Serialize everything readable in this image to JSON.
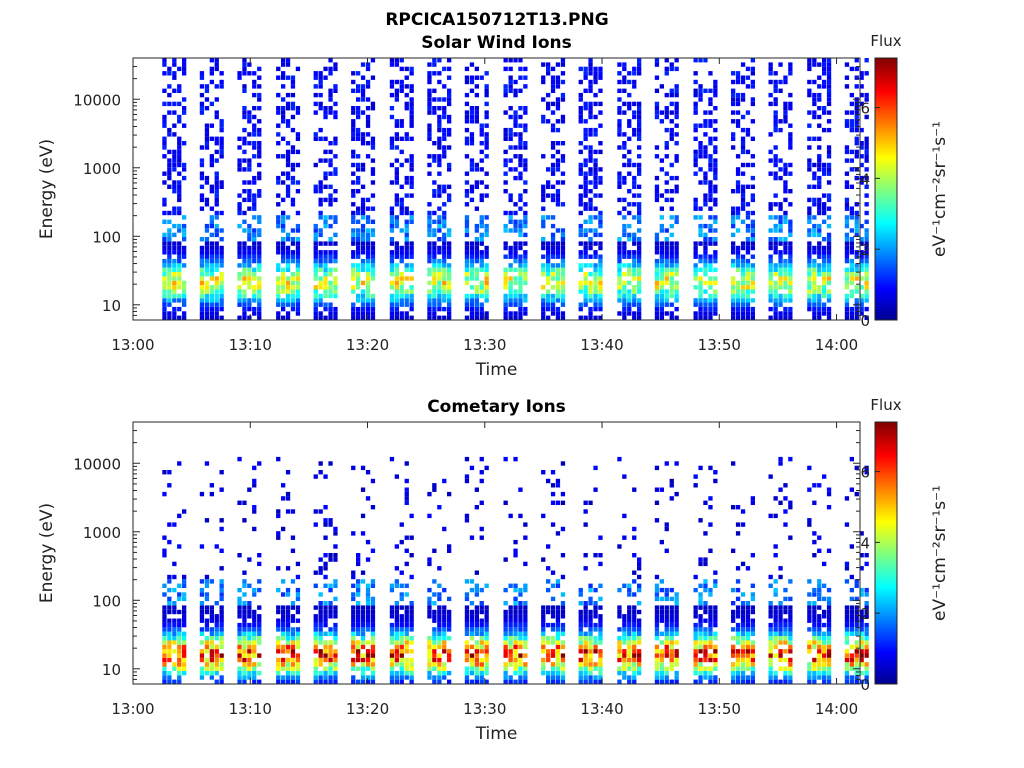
{
  "figure_title": "RPCICA150712T13.PNG",
  "chart_data": [
    {
      "type": "heatmap",
      "title": "Solar Wind Ions",
      "xlabel": "Time",
      "ylabel": "Energy (eV)",
      "x_ticks": [
        "13:00",
        "13:10",
        "13:20",
        "13:30",
        "13:40",
        "13:50",
        "14:00"
      ],
      "x_range_min": [
        0,
        62
      ],
      "y_scale": "log",
      "y_ticks": [
        10,
        100,
        1000,
        10000
      ],
      "y_range": [
        6,
        40000
      ],
      "colorbar": {
        "label": "Flux",
        "units": "eV⁻¹cm⁻²sr⁻¹s⁻¹",
        "ticks": [
          0,
          2,
          4,
          6
        ],
        "range": [
          0,
          7.4
        ],
        "colormap": "jet"
      },
      "sweep_start_min": [
        2.5,
        5.7,
        8.9,
        12.2,
        15.4,
        18.6,
        21.9,
        25.1,
        28.3,
        31.6,
        34.8,
        38.0,
        41.3,
        44.5,
        47.8,
        51.0,
        54.2,
        57.5,
        60.7
      ],
      "profile": {
        "low_energy_peak_flux": 4.5,
        "low_energy_peak_eV": 20,
        "high_energy_flux": 0.6,
        "max_energy_eV": 40000
      }
    },
    {
      "type": "heatmap",
      "title": "Cometary Ions",
      "xlabel": "Time",
      "ylabel": "Energy (eV)",
      "x_ticks": [
        "13:00",
        "13:10",
        "13:20",
        "13:30",
        "13:40",
        "13:50",
        "14:00"
      ],
      "x_range_min": [
        0,
        62
      ],
      "y_scale": "log",
      "y_ticks": [
        10,
        100,
        1000,
        10000
      ],
      "y_range": [
        6,
        40000
      ],
      "colorbar": {
        "label": "Flux",
        "units": "eV⁻¹cm⁻²sr⁻¹s⁻¹",
        "ticks": [
          0,
          2,
          4,
          6
        ],
        "range": [
          0,
          7.4
        ],
        "colormap": "jet"
      },
      "sweep_start_min": [
        2.5,
        5.7,
        8.9,
        12.2,
        15.4,
        18.6,
        21.9,
        25.1,
        28.3,
        31.6,
        34.8,
        38.0,
        41.3,
        44.5,
        47.8,
        51.0,
        54.2,
        57.5,
        60.7
      ],
      "profile": {
        "low_energy_peak_flux": 6.5,
        "low_energy_peak_eV": 15,
        "high_energy_flux": 0.4,
        "max_energy_eV": 12000
      }
    }
  ]
}
